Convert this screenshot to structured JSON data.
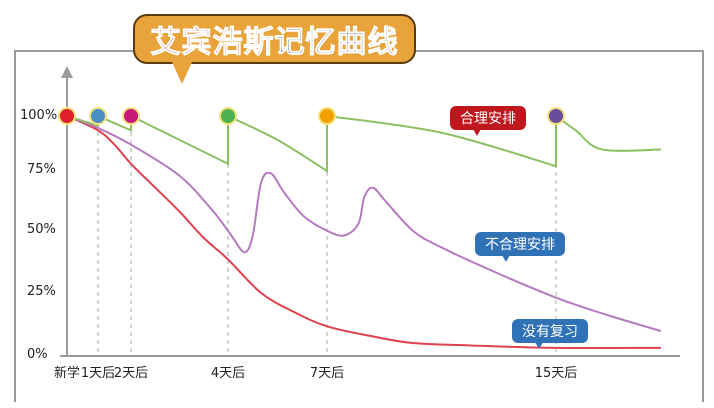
{
  "title": {
    "part1": "艾宾浩斯",
    "part2": "记忆曲线"
  },
  "chart_data": {
    "type": "line",
    "title": "艾宾浩斯记忆曲线",
    "x_ticks": [
      {
        "day": 0,
        "label": "新学"
      },
      {
        "day": 1,
        "label": "1天后"
      },
      {
        "day": 2,
        "label": "2天后"
      },
      {
        "day": 4,
        "label": "4天后"
      },
      {
        "day": 7,
        "label": "7天后"
      },
      {
        "day": 15,
        "label": "15天后"
      }
    ],
    "y_ticks": [
      "0%",
      "25%",
      "50%",
      "75%",
      "100%"
    ],
    "ylim": [
      0,
      100
    ],
    "xlim": [
      0,
      18.2
    ],
    "grid": false,
    "series": [
      {
        "name": "合理安排",
        "color": "#8cc063",
        "label_color": "#c0161e",
        "points": [
          [
            0,
            100
          ],
          [
            0.5,
            98
          ],
          [
            1,
            96
          ],
          [
            1,
            100
          ],
          [
            1.5,
            97
          ],
          [
            2,
            94
          ],
          [
            2,
            100
          ],
          [
            3,
            90
          ],
          [
            4,
            80
          ],
          [
            4,
            100
          ],
          [
            5.5,
            90
          ],
          [
            7,
            77
          ],
          [
            7,
            100
          ],
          [
            11,
            93
          ],
          [
            15,
            79
          ],
          [
            15,
            100
          ],
          [
            15.6,
            94
          ],
          [
            16.4,
            86
          ],
          [
            18.2,
            86
          ]
        ]
      },
      {
        "name": "不合理安排",
        "color": "#b57ac0",
        "label_color": "#2f72b6",
        "points": [
          [
            0,
            100
          ],
          [
            1,
            95
          ],
          [
            2,
            88
          ],
          [
            3,
            75
          ],
          [
            3.7,
            60
          ],
          [
            4.1,
            50
          ],
          [
            4.5,
            43
          ],
          [
            4.75,
            50
          ],
          [
            5,
            72
          ],
          [
            5.3,
            76
          ],
          [
            5.7,
            68
          ],
          [
            6.3,
            58
          ],
          [
            7,
            52
          ],
          [
            7.6,
            50
          ],
          [
            8.1,
            55
          ],
          [
            8.3,
            66
          ],
          [
            8.6,
            70
          ],
          [
            9,
            65
          ],
          [
            10,
            52
          ],
          [
            11,
            45
          ],
          [
            13,
            34
          ],
          [
            15,
            24
          ],
          [
            16.5,
            17
          ],
          [
            18.2,
            10
          ]
        ]
      },
      {
        "name": "没有复习",
        "color": "#e0414e",
        "label_color": "#2f72b6",
        "points": [
          [
            0,
            100
          ],
          [
            1,
            94
          ],
          [
            1.5,
            88
          ],
          [
            2,
            80
          ],
          [
            2.5,
            70
          ],
          [
            3,
            60
          ],
          [
            3.5,
            49
          ],
          [
            4,
            40
          ],
          [
            5,
            26
          ],
          [
            6,
            18
          ],
          [
            7,
            12
          ],
          [
            8.5,
            8
          ],
          [
            10,
            5
          ],
          [
            12,
            4
          ],
          [
            15,
            3
          ],
          [
            18.2,
            3
          ]
        ]
      }
    ],
    "review_points": [
      {
        "day": 0,
        "color": "#e0202e"
      },
      {
        "day": 1,
        "color": "#4a90c8"
      },
      {
        "day": 2,
        "color": "#c8187a"
      },
      {
        "day": 4,
        "color": "#4caf50"
      },
      {
        "day": 7,
        "color": "#f0a000"
      },
      {
        "day": 15,
        "color": "#6a4c9c"
      }
    ]
  }
}
